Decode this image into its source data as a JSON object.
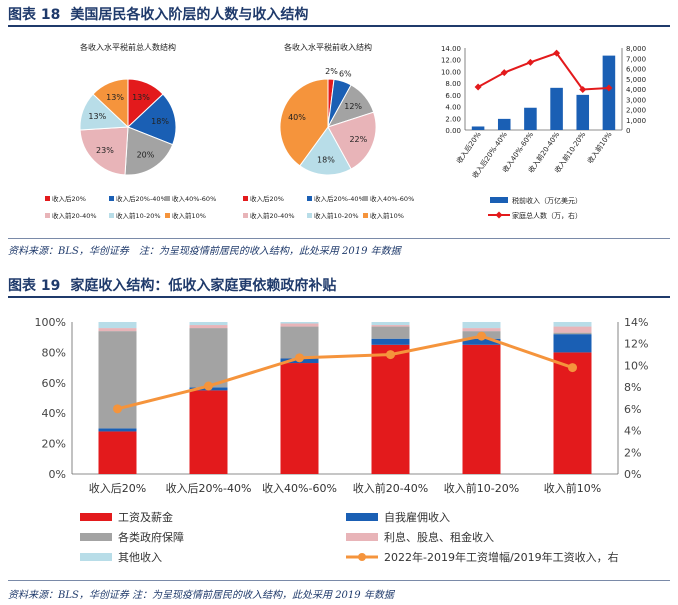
{
  "fig18": {
    "number": "图表 18",
    "title": "美国居民各收入阶层的人数与收入结构",
    "source": "资料来源：BLS，华创证券　注：为呈现疫情前居民的收入结构，此处采用 2019 年数据"
  },
  "fig19": {
    "number": "图表 19",
    "title": "家庭收入结构：低收入家庭更依赖政府补贴",
    "source": "资料来源：BLS，华创证券 注：为呈现疫情前居民的收入结构，此处采用 2019 年数据"
  },
  "colors": {
    "q1": "#e31a1c",
    "q2": "#1a5fb4",
    "q3": "#a3a3a3",
    "q4": "#e8b4b8",
    "q5": "#b8dde8",
    "q6": "#f5943c",
    "grid": "#d0d0d0",
    "axis": "#666666",
    "navy": "#1f3a6b"
  },
  "chart_data": [
    {
      "type": "pie",
      "title": "各收入水平税前总人数结构",
      "labels": [
        "收入后20%",
        "收入后20%-40%",
        "收入40%-60%",
        "收入前20-40%",
        "收入前10-20%",
        "收入前10%"
      ],
      "values": [
        13,
        18,
        20,
        23,
        13,
        13
      ],
      "data_labels": [
        "13%",
        "18%",
        "20%",
        "23%",
        "13%",
        "13%"
      ]
    },
    {
      "type": "pie",
      "title": "各收入水平税前收入结构",
      "labels": [
        "收入后20%",
        "收入后20%-40%",
        "收入40%-60%",
        "收入前20-40%",
        "收入前10-20%",
        "收入前10%"
      ],
      "values": [
        2,
        6,
        12,
        22,
        18,
        40
      ],
      "data_labels": [
        "2%",
        "6%",
        "12%",
        "22%",
        "18%",
        "40%"
      ]
    },
    {
      "type": "bar",
      "categories": [
        "收入后20%",
        "收入后20%-40%",
        "收入40%-60%",
        "收入前20-40%",
        "收入前10-20%",
        "收入前10%"
      ],
      "series": [
        {
          "name": "税前收入（万亿美元）",
          "type": "bar",
          "axis": "left",
          "values": [
            0.6,
            1.9,
            3.8,
            7.2,
            6.0,
            12.7
          ]
        },
        {
          "name": "家庭总人数（万，右）",
          "type": "line",
          "axis": "right",
          "values": [
            4200,
            5600,
            6600,
            7500,
            3950,
            4100
          ]
        }
      ],
      "ylim": [
        0,
        14
      ],
      "yticks": [
        "0.00",
        "2.00",
        "4.00",
        "6.00",
        "8.00",
        "10.00",
        "12.00",
        "14.00"
      ],
      "y2lim": [
        0,
        8000
      ],
      "y2ticks": [
        "0",
        "1,000",
        "2,000",
        "3,000",
        "4,000",
        "5,000",
        "6,000",
        "7,000",
        "8,000"
      ],
      "legend": "bottom"
    },
    {
      "type": "bar",
      "stacked": true,
      "categories": [
        "收入后20%",
        "收入后20%-40%",
        "收入40%-60%",
        "收入前20-40%",
        "收入前10-20%",
        "收入前10%"
      ],
      "series": [
        {
          "name": "工资及薪金",
          "type": "bar",
          "values": [
            28,
            55,
            73,
            85,
            85,
            80
          ]
        },
        {
          "name": "自我雇佣收入",
          "type": "bar",
          "values": [
            2,
            2,
            3,
            4,
            4,
            12
          ]
        },
        {
          "name": "各类政府保障",
          "type": "bar",
          "values": [
            64,
            39,
            21,
            8,
            5,
            1
          ]
        },
        {
          "name": "利息、股息、租金收入",
          "type": "bar",
          "values": [
            2,
            2,
            2,
            1,
            2,
            4
          ]
        },
        {
          "name": "其他收入",
          "type": "bar",
          "values": [
            4,
            2,
            1,
            2,
            4,
            3
          ]
        },
        {
          "name": "2022年-2019年工资增幅/2019年工资收入，右",
          "type": "line",
          "axis": "right",
          "values": [
            6.0,
            8.1,
            10.7,
            11.0,
            12.7,
            9.8
          ]
        }
      ],
      "ylim": [
        0,
        100
      ],
      "yticks": [
        "0%",
        "20%",
        "40%",
        "60%",
        "80%",
        "100%"
      ],
      "y2lim": [
        0,
        14
      ],
      "y2ticks": [
        "0%",
        "2%",
        "4%",
        "6%",
        "8%",
        "10%",
        "12%",
        "14%"
      ],
      "legend": "bottom"
    }
  ]
}
